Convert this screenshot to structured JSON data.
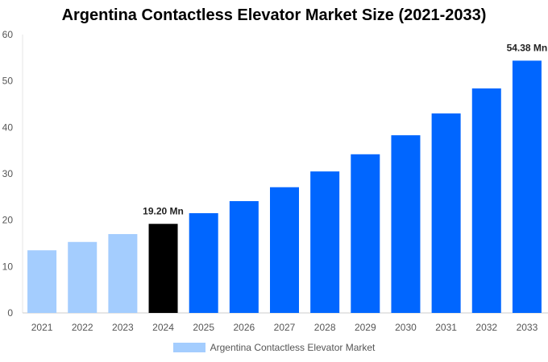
{
  "chart_data": {
    "type": "bar",
    "title": "Argentina Contactless Elevator Market Size (2021-2033)",
    "categories": [
      "2021",
      "2022",
      "2023",
      "2024",
      "2025",
      "2026",
      "2027",
      "2028",
      "2029",
      "2030",
      "2031",
      "2032",
      "2033"
    ],
    "series": [
      {
        "name": "Argentina Contactless Elevator Market",
        "values": [
          13.5,
          15.3,
          17.0,
          19.2,
          21.5,
          24.1,
          27.1,
          30.5,
          34.2,
          38.3,
          43.0,
          48.4,
          54.38
        ]
      }
    ],
    "data_labels": {
      "3": "19.20 Mn",
      "12": "54.38 Mn"
    },
    "ylim": [
      0,
      60
    ],
    "yticks": [
      0,
      10,
      20,
      30,
      40,
      50,
      60
    ],
    "xlabel": "",
    "ylabel": "",
    "grid": false,
    "legend": "bottom",
    "colors": {
      "historical": "#a4cdfe",
      "base_year": "#000000",
      "forecast": "#0066ff"
    }
  }
}
